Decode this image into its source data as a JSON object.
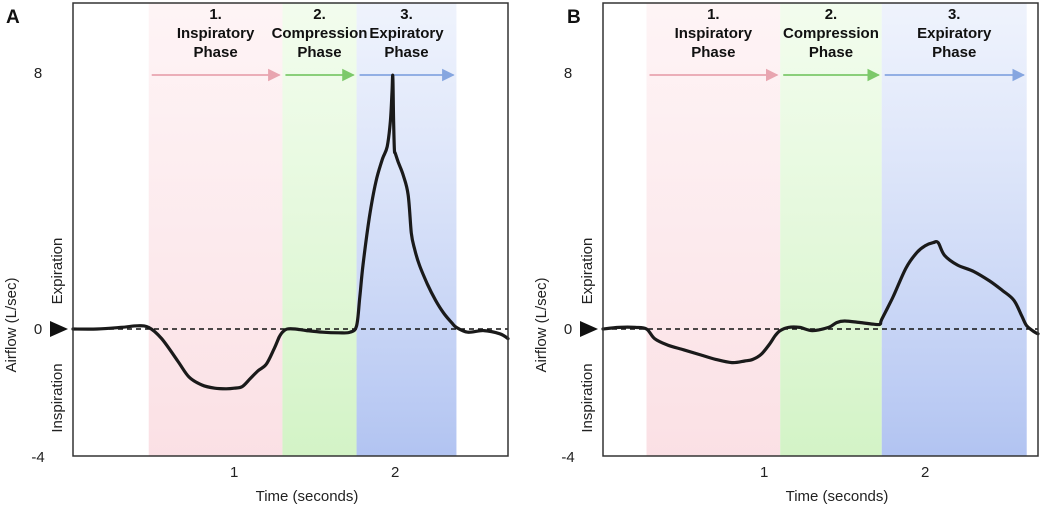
{
  "colors": {
    "inspiratory": "#f7c7cf",
    "compression": "#c8f0b8",
    "expiratory": "#a9bdf0",
    "inspiratory_arrow": "#e8a5b0",
    "compression_arrow": "#7cc96a",
    "expiratory_arrow": "#86a6e0"
  },
  "chart_data": [
    {
      "type": "line",
      "panel": "A",
      "xlabel": "Time (seconds)",
      "ylabel": "Airflow (L/sec)",
      "xlim": [
        0,
        2.7
      ],
      "ylim": [
        -4,
        9.5
      ],
      "xticks": [
        1,
        2
      ],
      "yticks": [
        -4,
        0,
        8
      ],
      "y_region_labels": {
        "upper": "Expiration",
        "lower": "Inspiration"
      },
      "baseline": 0,
      "phases": [
        {
          "key": "inspiratory",
          "number": "1.",
          "lines": [
            "Inspiratory",
            "Phase"
          ],
          "start": 0.47,
          "end": 1.3
        },
        {
          "key": "compression",
          "number": "2.",
          "lines": [
            "Compression",
            "Phase"
          ],
          "start": 1.3,
          "end": 1.76
        },
        {
          "key": "expiratory",
          "number": "3.",
          "lines": [
            "Expiratory",
            "Phase"
          ],
          "start": 1.76,
          "end": 2.38
        }
      ],
      "series": [
        {
          "name": "airflow",
          "x": [
            0,
            0.15,
            0.3,
            0.4,
            0.47,
            0.55,
            0.65,
            0.72,
            0.8,
            0.88,
            0.95,
            1.0,
            1.05,
            1.1,
            1.15,
            1.2,
            1.25,
            1.28,
            1.3,
            1.33,
            1.38,
            1.45,
            1.55,
            1.65,
            1.72,
            1.76,
            1.78,
            1.8,
            1.84,
            1.88,
            1.92,
            1.95,
            1.97,
            1.98,
            1.985,
            1.99,
            1.995,
            2.0,
            2.02,
            2.05,
            2.08,
            2.1,
            2.12,
            2.15,
            2.2,
            2.25,
            2.3,
            2.35,
            2.38,
            2.45,
            2.55,
            2.65,
            2.7
          ],
          "y": [
            0,
            0,
            0.05,
            0.1,
            0.05,
            -0.3,
            -1.0,
            -1.5,
            -1.75,
            -1.85,
            -1.87,
            -1.85,
            -1.8,
            -1.55,
            -1.3,
            -1.1,
            -0.6,
            -0.25,
            -0.1,
            0.0,
            0.0,
            -0.05,
            -0.1,
            -0.12,
            -0.1,
            0.1,
            1.0,
            2.0,
            3.5,
            4.6,
            5.3,
            5.7,
            6.5,
            7.4,
            7.9,
            6.5,
            5.6,
            5.5,
            5.2,
            4.8,
            4.2,
            3.0,
            2.5,
            2.0,
            1.4,
            0.9,
            0.5,
            0.2,
            0.05,
            -0.1,
            -0.05,
            -0.15,
            -0.3
          ]
        }
      ]
    },
    {
      "type": "line",
      "panel": "B",
      "xlabel": "Time (seconds)",
      "ylabel": "Airflow (L/sec)",
      "xlim": [
        0,
        2.7
      ],
      "ylim": [
        -4,
        9.5
      ],
      "xticks": [
        1,
        2
      ],
      "yticks": [
        -4,
        0,
        8
      ],
      "y_region_labels": {
        "upper": "Expiration",
        "lower": "Inspiration"
      },
      "baseline": 0,
      "phases": [
        {
          "key": "inspiratory",
          "number": "1.",
          "lines": [
            "Inspiratory",
            "Phase"
          ],
          "start": 0.27,
          "end": 1.1
        },
        {
          "key": "compression",
          "number": "2.",
          "lines": [
            "Compression",
            "Phase"
          ],
          "start": 1.1,
          "end": 1.73
        },
        {
          "key": "expiratory",
          "number": "3.",
          "lines": [
            "Expiratory",
            "Phase"
          ],
          "start": 1.73,
          "end": 2.63
        }
      ],
      "series": [
        {
          "name": "airflow",
          "x": [
            0,
            0.1,
            0.2,
            0.27,
            0.32,
            0.4,
            0.5,
            0.6,
            0.7,
            0.8,
            0.88,
            0.93,
            0.98,
            1.03,
            1.07,
            1.1,
            1.15,
            1.22,
            1.3,
            1.4,
            1.45,
            1.5,
            1.6,
            1.68,
            1.72,
            1.73,
            1.8,
            1.88,
            1.95,
            2.0,
            2.05,
            2.08,
            2.12,
            2.2,
            2.3,
            2.4,
            2.48,
            2.55,
            2.6,
            2.63,
            2.68,
            2.7
          ],
          "y": [
            0,
            0.05,
            0.05,
            0.0,
            -0.3,
            -0.5,
            -0.65,
            -0.8,
            -0.95,
            -1.05,
            -1.0,
            -0.95,
            -0.8,
            -0.5,
            -0.2,
            -0.05,
            0.05,
            0.05,
            -0.05,
            0.05,
            0.2,
            0.25,
            0.2,
            0.15,
            0.15,
            0.3,
            1.0,
            1.9,
            2.4,
            2.6,
            2.7,
            2.7,
            2.3,
            2.0,
            1.8,
            1.5,
            1.2,
            0.9,
            0.4,
            0.1,
            -0.1,
            -0.15
          ]
        }
      ]
    }
  ]
}
